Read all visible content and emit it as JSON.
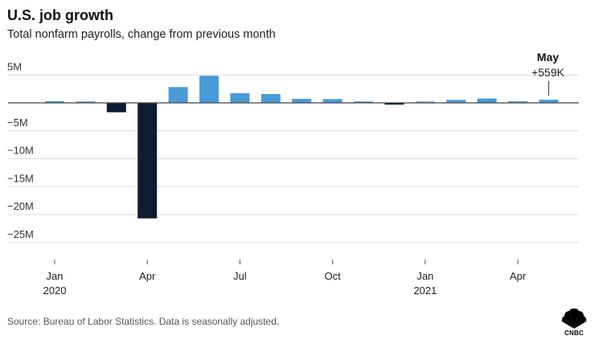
{
  "header": {
    "title": "U.S. job growth",
    "subtitle": "Total nonfarm payrolls, change from previous month"
  },
  "footer": {
    "source": "Source: Bureau of Labor Statistics. Data is seasonally adjusted.",
    "logo_text": "CNBC"
  },
  "colors": {
    "positive": "#4a9ad8",
    "negative": "#0d1b33",
    "grid": "#dcdcdc",
    "axis": "#555555"
  },
  "chart_data": {
    "type": "bar",
    "title": "",
    "xlabel": "",
    "ylabel": "",
    "unit": "jobs (millions)",
    "categories": [
      "2020-01",
      "2020-02",
      "2020-03",
      "2020-04",
      "2020-05",
      "2020-06",
      "2020-07",
      "2020-08",
      "2020-09",
      "2020-10",
      "2020-11",
      "2020-12",
      "2021-01",
      "2021-02",
      "2021-03",
      "2021-04",
      "2021-05"
    ],
    "values": [
      0.31,
      0.25,
      -1.68,
      -20.68,
      2.83,
      4.85,
      1.73,
      1.58,
      0.72,
      0.68,
      0.26,
      -0.31,
      0.23,
      0.54,
      0.79,
      0.28,
      0.559
    ],
    "ylim": [
      -27.5,
      6
    ],
    "yticks": [
      5,
      0,
      -5,
      -10,
      -15,
      -20,
      -25
    ],
    "ytick_labels": [
      "5M",
      "",
      "−5M",
      "−10M",
      "−15M",
      "−20M",
      "−25M"
    ],
    "xticks": [
      {
        "index": 0,
        "label": "Jan",
        "sublabel": "2020"
      },
      {
        "index": 3,
        "label": "Apr",
        "sublabel": ""
      },
      {
        "index": 6,
        "label": "Jul",
        "sublabel": ""
      },
      {
        "index": 9,
        "label": "Oct",
        "sublabel": ""
      },
      {
        "index": 12,
        "label": "Jan",
        "sublabel": "2021"
      },
      {
        "index": 15,
        "label": "Apr",
        "sublabel": ""
      }
    ],
    "grid": true,
    "annotation": {
      "index": 16,
      "title": "May",
      "value": "+559K"
    }
  }
}
